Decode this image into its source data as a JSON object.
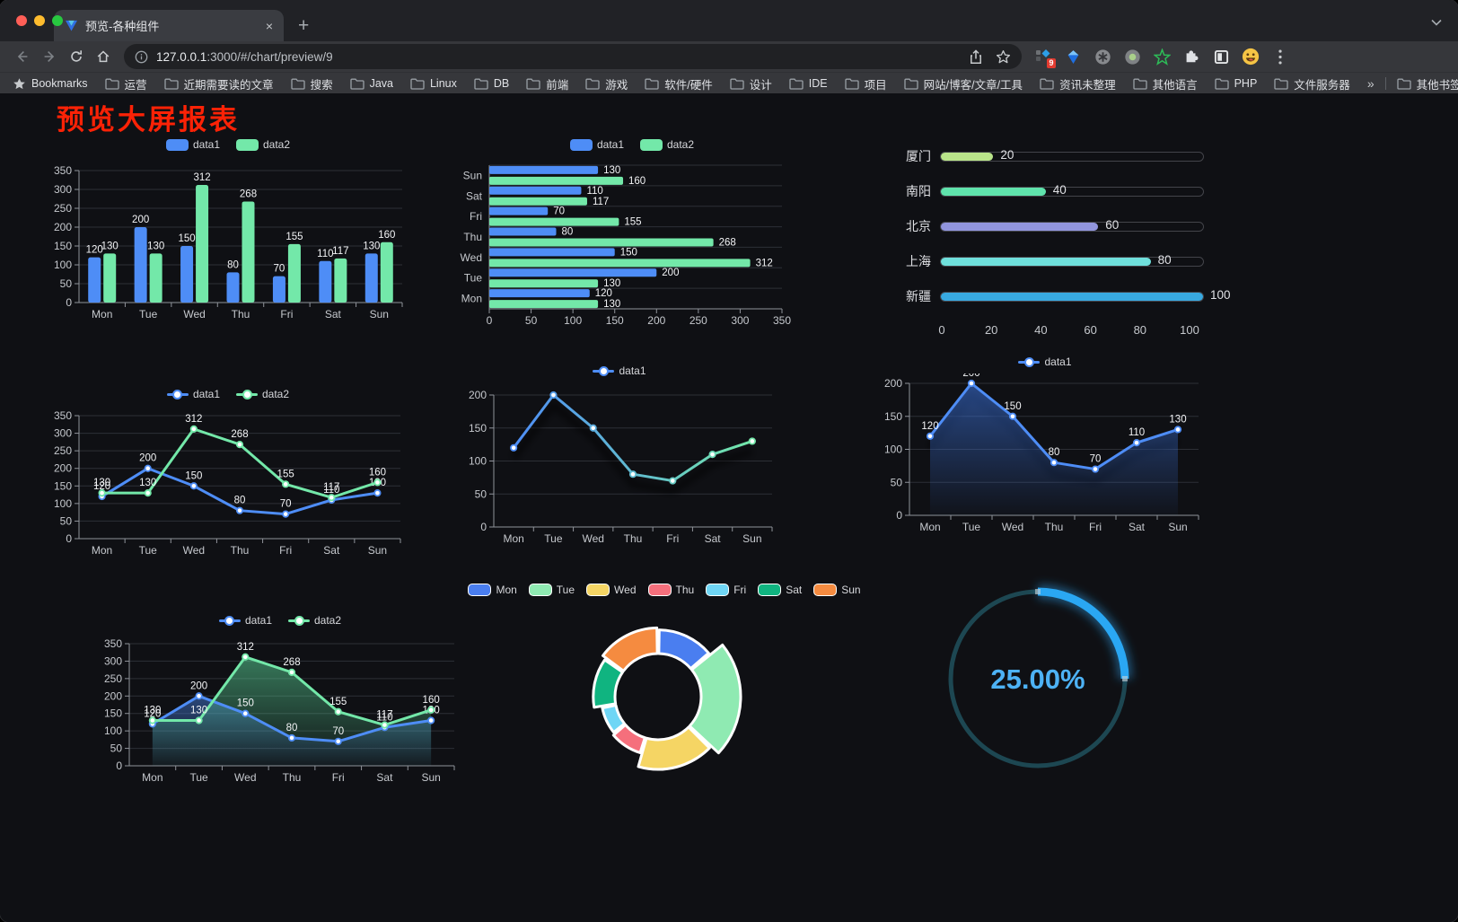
{
  "browser": {
    "traffic_lights": [
      "#ff5f57",
      "#febc2e",
      "#28c840"
    ],
    "tab_title": "预览-各种组件",
    "close_glyph": "×",
    "new_tab_glyph": "+",
    "url_host": "127.0.0.1",
    "url_rest": ":3000/#/chart/preview/9",
    "bookmarks_label": "Bookmarks",
    "bookmarks": [
      "运营",
      "近期需要读的文章",
      "搜索",
      "Java",
      "Linux",
      "DB",
      "前端",
      "游戏",
      "软件/硬件",
      "设计",
      "IDE",
      "项目",
      "网站/博客/文章/工具",
      "资讯未整理",
      "其他语言",
      "PHP",
      "文件服务器"
    ],
    "overflow_chevron": "»",
    "other_bookmarks": "其他书签",
    "extension_badge": "9"
  },
  "page_title": "预览大屏报表",
  "chart_data": [
    {
      "type": "bar",
      "title": "",
      "categories": [
        "Mon",
        "Tue",
        "Wed",
        "Thu",
        "Fri",
        "Sat",
        "Sun"
      ],
      "series": [
        {
          "name": "data1",
          "color": "#4e8df6",
          "values": [
            120,
            200,
            150,
            80,
            70,
            110,
            130
          ]
        },
        {
          "name": "data2",
          "color": "#73e8a9",
          "values": [
            130,
            130,
            312,
            268,
            155,
            117,
            160
          ]
        }
      ],
      "ylim": [
        0,
        350
      ],
      "ytick": 50,
      "grid": true,
      "legend_position": "top"
    },
    {
      "type": "bar",
      "orientation": "horizontal",
      "categories": [
        "Mon",
        "Tue",
        "Wed",
        "Thu",
        "Fri",
        "Sat",
        "Sun"
      ],
      "categories_displayed_top_to_bottom": [
        "Sun",
        "Sat",
        "Fri",
        "Thu",
        "Wed",
        "Tue",
        "Mon"
      ],
      "series": [
        {
          "name": "data1",
          "color": "#4e8df6",
          "values": [
            120,
            200,
            150,
            80,
            70,
            110,
            130
          ]
        },
        {
          "name": "data2",
          "color": "#73e8a9",
          "values": [
            130,
            130,
            312,
            268,
            155,
            117,
            160
          ]
        }
      ],
      "xlim": [
        0,
        350
      ],
      "xtick": 50,
      "grid": true,
      "legend_position": "top"
    },
    {
      "type": "bar",
      "subtype": "progress-list",
      "rows": [
        {
          "label": "厦门",
          "value": 20,
          "color": "#b9e48a"
        },
        {
          "label": "南阳",
          "value": 40,
          "color": "#5fe3ac"
        },
        {
          "label": "北京",
          "value": 60,
          "color": "#9195dd"
        },
        {
          "label": "上海",
          "value": 80,
          "color": "#6fe0dc"
        },
        {
          "label": "新疆",
          "value": 100,
          "color": "#38a9e0"
        }
      ],
      "max": 100,
      "xticks": [
        0,
        20,
        40,
        60,
        80,
        100
      ]
    },
    {
      "type": "line",
      "categories": [
        "Mon",
        "Tue",
        "Wed",
        "Thu",
        "Fri",
        "Sat",
        "Sun"
      ],
      "series": [
        {
          "name": "data1",
          "color": "#4e8df6",
          "values": [
            120,
            200,
            150,
            80,
            70,
            110,
            130
          ]
        },
        {
          "name": "data2",
          "color": "#73e8a9",
          "values": [
            130,
            130,
            312,
            268,
            155,
            117,
            160
          ]
        }
      ],
      "ylim": [
        0,
        350
      ],
      "ytick": 50,
      "show_labels": true,
      "legend_position": "top"
    },
    {
      "type": "line",
      "subtype": "gradient-stroke",
      "categories": [
        "Mon",
        "Tue",
        "Wed",
        "Thu",
        "Fri",
        "Sat",
        "Sun"
      ],
      "series": [
        {
          "name": "data1",
          "gradient": [
            "#4e8df6",
            "#73e8a9"
          ],
          "values": [
            120,
            200,
            150,
            80,
            70,
            110,
            130
          ]
        }
      ],
      "ylim": [
        0,
        200
      ],
      "ytick": 50,
      "show_labels": false,
      "shadow": true,
      "legend_position": "top"
    },
    {
      "type": "area",
      "categories": [
        "Mon",
        "Tue",
        "Wed",
        "Thu",
        "Fri",
        "Sat",
        "Sun"
      ],
      "series": [
        {
          "name": "data1",
          "color": "#4e8df6",
          "values": [
            120,
            200,
            150,
            80,
            70,
            110,
            130
          ]
        }
      ],
      "ylim": [
        0,
        200
      ],
      "ytick": 50,
      "show_labels": true,
      "shadow": true,
      "legend_position": "top"
    },
    {
      "type": "area",
      "subtype": "multi-line-area",
      "categories": [
        "Mon",
        "Tue",
        "Wed",
        "Thu",
        "Fri",
        "Sat",
        "Sun"
      ],
      "series": [
        {
          "name": "data1",
          "color": "#4e8df6",
          "values": [
            120,
            200,
            150,
            80,
            70,
            110,
            130
          ]
        },
        {
          "name": "data2",
          "color": "#73e8a9",
          "values": [
            130,
            130,
            312,
            268,
            155,
            117,
            160
          ]
        }
      ],
      "ylim": [
        0,
        350
      ],
      "ytick": 50,
      "show_labels": true,
      "legend_position": "top"
    },
    {
      "type": "pie",
      "subtype": "rose-donut",
      "categories": [
        "Mon",
        "Tue",
        "Wed",
        "Thu",
        "Fri",
        "Sat",
        "Sun"
      ],
      "values": [
        120,
        200,
        150,
        80,
        70,
        110,
        130
      ],
      "colors": [
        "#4a7ef0",
        "#8feab2",
        "#f5d564",
        "#f56f7c",
        "#6fd6f5",
        "#10b480",
        "#f58b40"
      ],
      "legend_position": "top"
    },
    {
      "type": "gauge",
      "value": 25,
      "label": "25.00%",
      "color": "#2aa7f3",
      "track": "#1d4752",
      "text_color": "#4db2f5"
    }
  ]
}
